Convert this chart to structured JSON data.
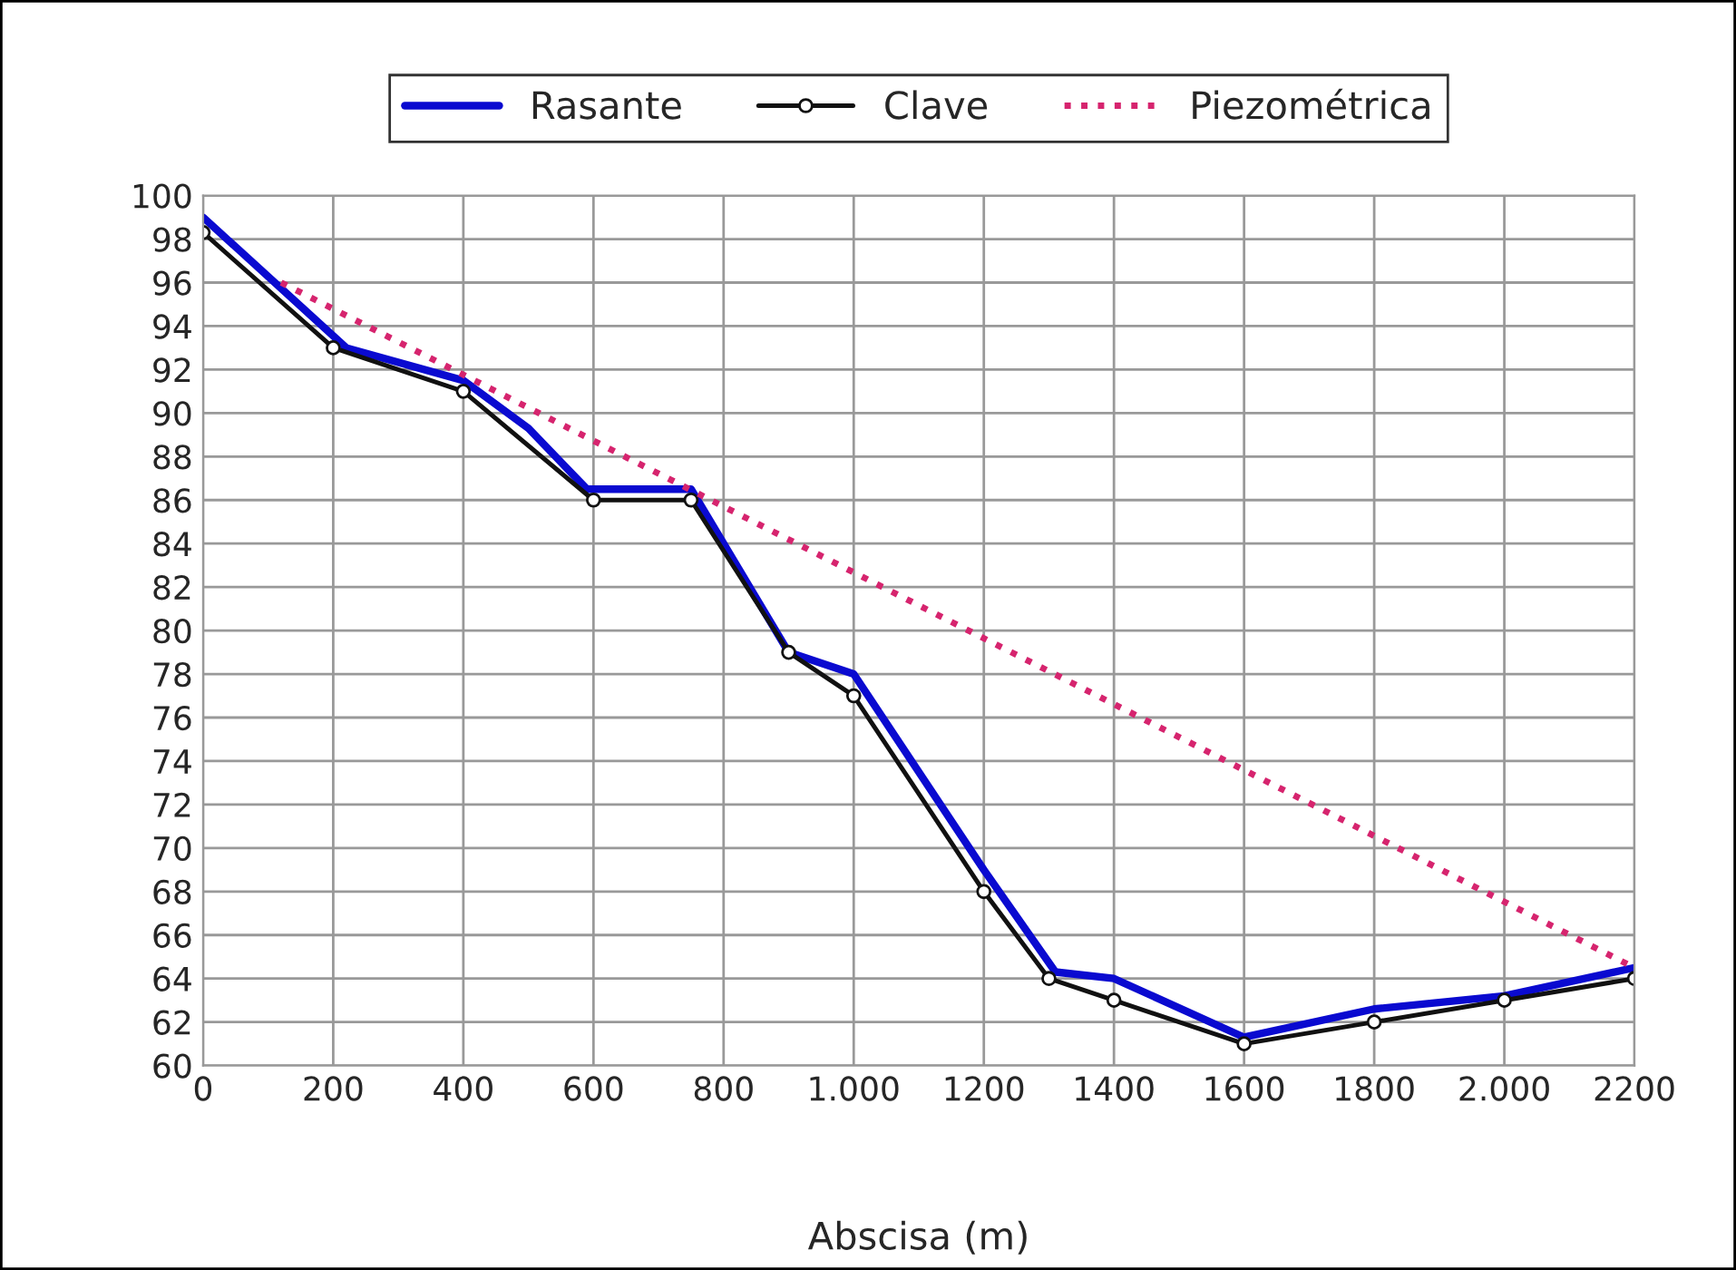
{
  "chart_data": {
    "type": "line",
    "xlabel": "Abscisa (m)",
    "xlim": [
      0,
      2200
    ],
    "ylim": [
      60,
      100
    ],
    "xticks": [
      0,
      200,
      400,
      600,
      800,
      {
        "value": 1000,
        "label": "1.000"
      },
      1200,
      1400,
      1600,
      1800,
      {
        "value": 2000,
        "label": "2.000"
      },
      2200
    ],
    "yticks": [
      60,
      62,
      64,
      66,
      68,
      70,
      72,
      74,
      76,
      78,
      80,
      82,
      84,
      86,
      88,
      90,
      92,
      94,
      96,
      98,
      100
    ],
    "grid": true,
    "legend": "top",
    "series": [
      {
        "name": "Rasante",
        "color": "#0a0ad0",
        "marker": "none",
        "line_style": "solid",
        "x": [
          0,
          220,
          400,
          500,
          590,
          750,
          900,
          1000,
          1200,
          1310,
          1400,
          1600,
          1800,
          2000,
          2200
        ],
        "values": [
          99,
          93,
          91.5,
          89.3,
          86.5,
          86.5,
          79,
          78,
          69,
          64.3,
          64,
          61.3,
          62.6,
          63.2,
          64.5
        ]
      },
      {
        "name": "Clave",
        "color": "#111111",
        "marker": "circle",
        "line_style": "solid",
        "x": [
          0,
          200,
          400,
          600,
          750,
          900,
          1000,
          1200,
          1300,
          1400,
          1600,
          1800,
          2000,
          2200
        ],
        "values": [
          98.3,
          93,
          91,
          86,
          86,
          79,
          77,
          68,
          64,
          63,
          61,
          62,
          63,
          64
        ]
      },
      {
        "name": "Piezométrica",
        "color": "#d6246e",
        "marker": "none",
        "line_style": "dotted",
        "x": [
          120,
          2200
        ],
        "values": [
          96,
          64.5
        ]
      }
    ]
  }
}
